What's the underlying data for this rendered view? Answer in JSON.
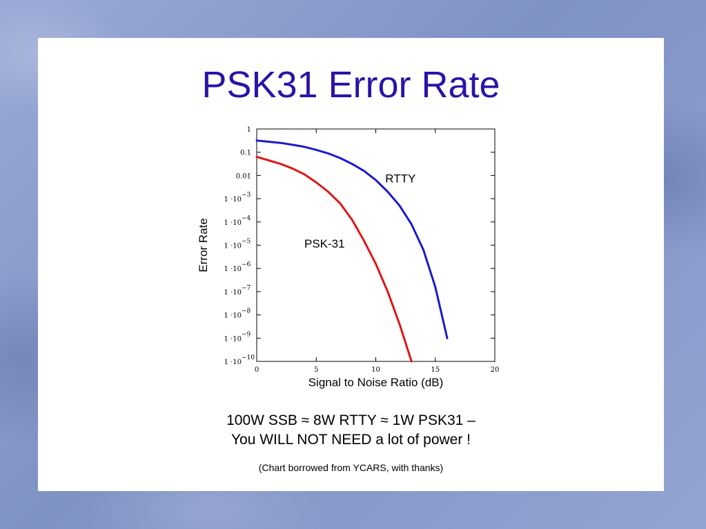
{
  "slide": {
    "title": "PSK31 Error Rate",
    "caption_line1": "100W SSB ≈ 8W RTTY ≈ 1W PSK31 –",
    "caption_line2": "You WILL NOT NEED a lot of power !",
    "credit": "(Chart borrowed from YCARS, with thanks)"
  },
  "colors": {
    "title": "#2a13a8",
    "rtty": "#1a1acc",
    "psk31": "#e01515",
    "background": "#8a9ccb"
  },
  "chart_data": {
    "type": "line",
    "xlabel": "Signal to Noise Ratio (dB)",
    "ylabel": "Error Rate",
    "xlim": [
      0,
      20
    ],
    "ylim_log10": [
      -10,
      0
    ],
    "y_scale": "log",
    "grid": false,
    "x_ticks": [
      "0",
      "5",
      "10",
      "15",
      "20"
    ],
    "y_ticks": [
      {
        "text": "1"
      },
      {
        "text": "0.1"
      },
      {
        "text": "0.01"
      },
      {
        "text": "1 ·10",
        "exp": "−3"
      },
      {
        "text": "1 ·10",
        "exp": "−4"
      },
      {
        "text": "1 ·10",
        "exp": "−5"
      },
      {
        "text": "1 ·10",
        "exp": "−6"
      },
      {
        "text": "1 ·10",
        "exp": "−7"
      },
      {
        "text": "1 ·10",
        "exp": "−8"
      },
      {
        "text": "1 ·10",
        "exp": "−9"
      },
      {
        "text": "1 ·10",
        "exp": "−10"
      }
    ],
    "series": [
      {
        "name": "RTTY",
        "x": [
          0,
          1,
          2,
          3,
          4,
          5,
          6,
          7,
          8,
          9,
          10,
          11,
          12,
          13,
          14,
          15,
          16
        ],
        "log10_y": [
          -0.5,
          -0.55,
          -0.6,
          -0.68,
          -0.77,
          -0.9,
          -1.05,
          -1.25,
          -1.5,
          -1.8,
          -2.2,
          -2.7,
          -3.3,
          -4.1,
          -5.2,
          -6.8,
          -9.0
        ]
      },
      {
        "name": "PSK-31",
        "x": [
          0,
          1,
          2,
          3,
          4,
          5,
          6,
          7,
          8,
          9,
          10,
          11,
          12,
          13
        ],
        "log10_y": [
          -1.2,
          -1.35,
          -1.5,
          -1.7,
          -1.95,
          -2.3,
          -2.7,
          -3.2,
          -3.9,
          -4.8,
          -5.8,
          -7.0,
          -8.4,
          -10.0
        ]
      }
    ]
  }
}
